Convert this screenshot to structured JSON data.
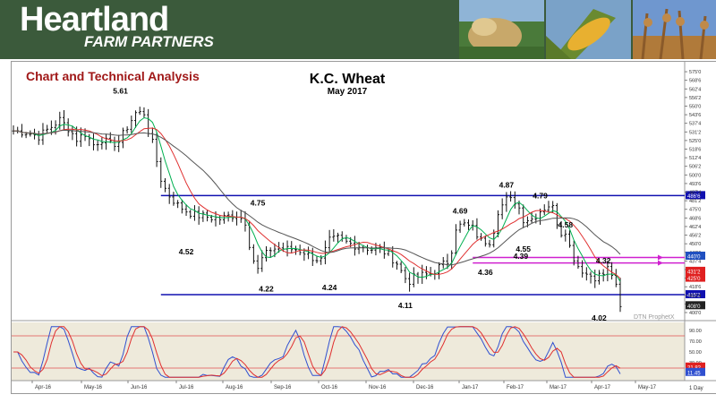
{
  "header": {
    "brand": "Heartland",
    "brand_sub": "FARM PARTNERS",
    "brand_color": "#3b5a3b",
    "photos": [
      "cow-photo",
      "corn-photo",
      "soybean-photo"
    ]
  },
  "chart_data": {
    "type": "candlestick",
    "corner_title": "Chart and Technical Analysis",
    "title": "K.C. Wheat",
    "subtitle": "May 2017",
    "watermark": "DTN ProphetX",
    "ylim": [
      400,
      577
    ],
    "y_ticks": [
      "575'0",
      "568'6",
      "562'4",
      "556'2",
      "550'0",
      "543'6",
      "537'4",
      "531'2",
      "525'0",
      "518'6",
      "512'4",
      "506'2",
      "500'0",
      "493'6",
      "487'4",
      "481'2",
      "475'0",
      "468'6",
      "462'4",
      "456'2",
      "450'0",
      "443'6",
      "437'4",
      "431'2",
      "425'0",
      "418'6",
      "412'4",
      "406'2",
      "400'0"
    ],
    "x_labels": [
      "Apr-16",
      "May-16",
      "Jun-16",
      "Jul-16",
      "Aug-16",
      "Sep-16",
      "Oct-16",
      "Nov-16",
      "Dec-16",
      "Jan-17",
      "Feb-17",
      "Mar-17",
      "Apr-17",
      "May-17"
    ],
    "x_corner": "1 Day",
    "price_path": [
      [
        0,
        532
      ],
      [
        3,
        531
      ],
      [
        6,
        528
      ],
      [
        9,
        535
      ],
      [
        11,
        540
      ],
      [
        13,
        534
      ],
      [
        15,
        526
      ],
      [
        17,
        530
      ],
      [
        19,
        522
      ],
      [
        21,
        526
      ],
      [
        23,
        522
      ],
      [
        25,
        524
      ],
      [
        27,
        535
      ],
      [
        29,
        545
      ],
      [
        31,
        545
      ],
      [
        32,
        532
      ],
      [
        33,
        523
      ],
      [
        34,
        510
      ],
      [
        35,
        497
      ],
      [
        36,
        490
      ],
      [
        37,
        485
      ],
      [
        39,
        478
      ],
      [
        41,
        474
      ],
      [
        43,
        471
      ],
      [
        45,
        470
      ],
      [
        47,
        469
      ],
      [
        49,
        468
      ],
      [
        51,
        470
      ],
      [
        53,
        471
      ],
      [
        55,
        466
      ],
      [
        56,
        450
      ],
      [
        57,
        438
      ],
      [
        58,
        431
      ],
      [
        59,
        439
      ],
      [
        61,
        446
      ],
      [
        63,
        447
      ],
      [
        65,
        446
      ],
      [
        67,
        446
      ],
      [
        69,
        444
      ],
      [
        71,
        440
      ],
      [
        73,
        438
      ],
      [
        74,
        445
      ],
      [
        75,
        452
      ],
      [
        77,
        454
      ],
      [
        79,
        451
      ],
      [
        81,
        449
      ],
      [
        83,
        448
      ],
      [
        85,
        446
      ],
      [
        87,
        446
      ],
      [
        89,
        442
      ],
      [
        91,
        436
      ],
      [
        92,
        430
      ],
      [
        93,
        425
      ],
      [
        94,
        423
      ],
      [
        95,
        425
      ],
      [
        97,
        427
      ],
      [
        99,
        428
      ],
      [
        101,
        433
      ],
      [
        103,
        437
      ],
      [
        104,
        446
      ],
      [
        105,
        462
      ],
      [
        107,
        464
      ],
      [
        109,
        461
      ],
      [
        111,
        452
      ],
      [
        113,
        452
      ],
      [
        114,
        460
      ],
      [
        115,
        474
      ],
      [
        117,
        482
      ],
      [
        119,
        481
      ],
      [
        120,
        476
      ],
      [
        121,
        468
      ],
      [
        123,
        468
      ],
      [
        125,
        474
      ],
      [
        127,
        478
      ],
      [
        128,
        476
      ],
      [
        129,
        466
      ],
      [
        130,
        458
      ],
      [
        131,
        460
      ],
      [
        132,
        448
      ],
      [
        133,
        440
      ],
      [
        134,
        434
      ],
      [
        136,
        428
      ],
      [
        138,
        426
      ],
      [
        140,
        428
      ],
      [
        141,
        432
      ],
      [
        142,
        428
      ],
      [
        143,
        418
      ],
      [
        144,
        403
      ]
    ],
    "candle_days": 145,
    "series": [
      {
        "name": "",
        "color": "#00b050",
        "role": "fast-ma"
      },
      {
        "name": "",
        "color": "#e03030",
        "role": "mid-ma"
      },
      {
        "name": "",
        "color": "#555555",
        "role": "slow-ma"
      }
    ],
    "annotations": [
      {
        "label": "5.61",
        "day": 28,
        "price": 561,
        "pos": "left"
      },
      {
        "label": "4.75",
        "day": 58,
        "price": 474,
        "pos": "above"
      },
      {
        "label": "4.52",
        "day": 41,
        "price": 450,
        "pos": "below"
      },
      {
        "label": "4.22",
        "day": 60,
        "price": 423,
        "pos": "below"
      },
      {
        "label": "4.24",
        "day": 75,
        "price": 424,
        "pos": "below"
      },
      {
        "label": "4.11",
        "day": 93,
        "price": 411,
        "pos": "below"
      },
      {
        "label": "4.69",
        "day": 106,
        "price": 468,
        "pos": "above"
      },
      {
        "label": "4.87",
        "day": 117,
        "price": 487,
        "pos": "above"
      },
      {
        "label": "4.79",
        "day": 125,
        "price": 479,
        "pos": "above"
      },
      {
        "label": "4.55",
        "day": 121,
        "price": 452,
        "pos": "below"
      },
      {
        "label": "4.58",
        "day": 131,
        "price": 458,
        "pos": "above"
      },
      {
        "label": "4.36",
        "day": 112,
        "price": 435,
        "pos": "below"
      },
      {
        "label": "4.39",
        "day": 123,
        "price": 441,
        "pos": "left"
      },
      {
        "label": "4.32",
        "day": 140,
        "price": 432,
        "pos": "above"
      },
      {
        "label": "4.02",
        "day": 139,
        "price": 402,
        "pos": "below"
      }
    ],
    "h_lines": [
      {
        "price": 485,
        "color": "#1010b0",
        "from_day": 35,
        "tag": "486'6"
      },
      {
        "price": 413,
        "color": "#1010b0",
        "from_day": 35,
        "tag": "415'2"
      },
      {
        "price": 440,
        "color": "#d020d0",
        "from_day": 109,
        "tag": ""
      },
      {
        "price": 436,
        "color": "#d020d0",
        "from_day": 109,
        "tag": ""
      }
    ],
    "price_tags": [
      {
        "price": 441,
        "text": "440'0",
        "color": "#2050c0"
      },
      {
        "price": 430,
        "text": "431'2",
        "color": "#e02020"
      },
      {
        "price": 425,
        "text": "425'0",
        "color": "#e02020"
      },
      {
        "price": 405,
        "text": "408'0",
        "color": "#222222"
      }
    ],
    "oscillator": {
      "ylim": [
        0,
        100
      ],
      "ticks": [
        "90.00",
        "70.00",
        "50.00",
        "30.00",
        "10.00"
      ],
      "upper_band": 80,
      "lower_band": 20,
      "line1_color": "#3050d0",
      "line2_color": "#e03030",
      "tags": [
        {
          "text": "21.82",
          "color": "#e02020"
        },
        {
          "text": "11.45",
          "color": "#3050d0"
        }
      ]
    }
  }
}
